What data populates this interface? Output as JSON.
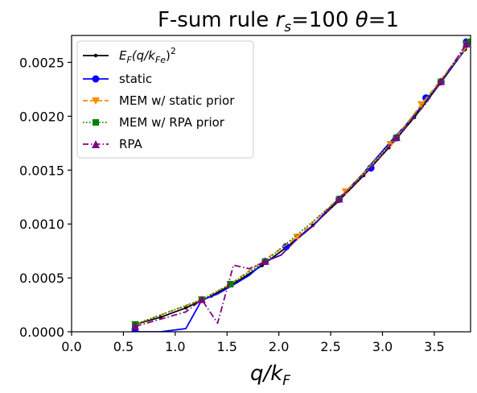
{
  "chart_data": {
    "type": "line",
    "title": "F-sum rule r_s=100 θ=1",
    "title_parts": {
      "prefix": "F-sum rule ",
      "rs_symbol": "r",
      "rs_sub": "s",
      "rs_value": "=100 ",
      "theta_symbol": "θ",
      "theta_value": "=1"
    },
    "xlabel": "q/k_F",
    "xlabel_parts": {
      "num": "q/k",
      "sub": "F"
    },
    "ylabel": "",
    "xlim": [
      0.0,
      3.85
    ],
    "ylim": [
      0.0,
      0.00275
    ],
    "xticks": [
      0.0,
      0.5,
      1.0,
      1.5,
      2.0,
      2.5,
      3.0,
      3.5
    ],
    "xtick_labels": [
      "0.0",
      "0.5",
      "1.0",
      "1.5",
      "2.0",
      "2.5",
      "3.0",
      "3.5"
    ],
    "yticks": [
      0.0,
      0.0005,
      0.001,
      0.0015,
      0.002,
      0.0025
    ],
    "ytick_labels": [
      "0.0000",
      "0.0005",
      "0.0010",
      "0.0015",
      "0.0020",
      "0.0025"
    ],
    "grid": false,
    "legend_position": "top-left",
    "series": [
      {
        "name": "E_F(q/k_Fe)^2",
        "legend_parts": {
          "e": "E",
          "e_sub": "F",
          "open": "(q/k",
          "k_sub": "Fe",
          "close": ")",
          "sup": "2"
        },
        "color": "#000000",
        "linestyle": "solid",
        "marker": "dot",
        "x": [
          0.613,
          0.858,
          1.103,
          1.348,
          1.593,
          1.838,
          2.083,
          2.328,
          2.573,
          2.818,
          3.063,
          3.308,
          3.553,
          3.798,
          3.85
        ],
        "y": [
          6.86e-05,
          0.000135,
          0.000222,
          0.000332,
          0.000463,
          0.000616,
          0.000791,
          0.000988,
          0.00121,
          0.00145,
          0.00171,
          0.00199,
          0.0023,
          0.00262,
          0.00269
        ]
      },
      {
        "name": "static",
        "color": "#0000ff",
        "linestyle": "solid",
        "marker": "circle",
        "x": [
          0.613,
          0.858,
          1.103,
          1.256,
          1.409,
          1.562,
          1.715,
          1.868,
          2.021,
          2.174,
          2.327,
          2.48,
          2.633,
          2.786,
          2.939,
          3.092,
          3.245,
          3.398,
          3.551,
          3.704,
          3.85
        ],
        "y": [
          0.0,
          0.0,
          3e-05,
          0.000295,
          0.000351,
          0.000436,
          0.000524,
          0.000652,
          0.000712,
          0.000859,
          0.00098,
          0.00114,
          0.00129,
          0.00144,
          0.00161,
          0.00178,
          0.00194,
          0.00212,
          0.00231,
          0.0025,
          0.00269
        ],
        "marker_x": [
          0.613,
          1.868,
          2.07,
          2.582,
          2.888,
          3.134,
          3.42,
          3.565,
          3.81
        ],
        "marker_y": [
          0.0,
          0.000652,
          0.00079,
          0.00123,
          0.00152,
          0.0018,
          0.00217,
          0.00232,
          0.00269
        ]
      },
      {
        "name": "MEM w/ static prior",
        "color": "#ff8c00",
        "linestyle": "dashed",
        "marker": "triangle-down",
        "x": [
          0.613,
          1.256,
          1.532,
          2.176,
          2.645,
          3.077,
          3.376,
          3.85
        ],
        "y": [
          6.86e-05,
          0.000298,
          0.000442,
          0.00088,
          0.0013,
          0.00174,
          0.00211,
          0.00269
        ]
      },
      {
        "name": "MEM w/ RPA prior",
        "color": "#008000",
        "linestyle": "dotted",
        "marker": "square",
        "x": [
          0.613,
          1.256,
          1.532,
          1.868,
          2.582,
          3.134,
          3.565,
          3.81,
          3.85
        ],
        "y": [
          6.86e-05,
          0.000298,
          0.000442,
          0.000652,
          0.00123,
          0.0018,
          0.00232,
          0.00267,
          0.00269
        ]
      },
      {
        "name": "RPA",
        "color": "#800080",
        "linestyle": "dashdot",
        "marker": "triangle-up",
        "x": [
          0.613,
          1.103,
          1.256,
          1.409,
          1.562,
          1.715,
          1.868,
          2.021,
          2.174,
          2.327,
          2.582,
          2.888,
          3.134,
          3.42,
          3.565,
          3.81,
          3.85
        ],
        "y": [
          5e-05,
          0.000185,
          0.000298,
          8e-05,
          0.000618,
          0.000585,
          0.000652,
          0.000712,
          0.000859,
          0.00098,
          0.00123,
          0.00152,
          0.0018,
          0.00212,
          0.00232,
          0.00267,
          0.00269
        ],
        "marker_x": [
          0.613,
          1.256,
          1.868,
          2.582,
          3.134,
          3.565,
          3.81
        ],
        "marker_y": [
          5e-05,
          0.000298,
          0.000652,
          0.00123,
          0.0018,
          0.00232,
          0.00267
        ]
      }
    ]
  }
}
